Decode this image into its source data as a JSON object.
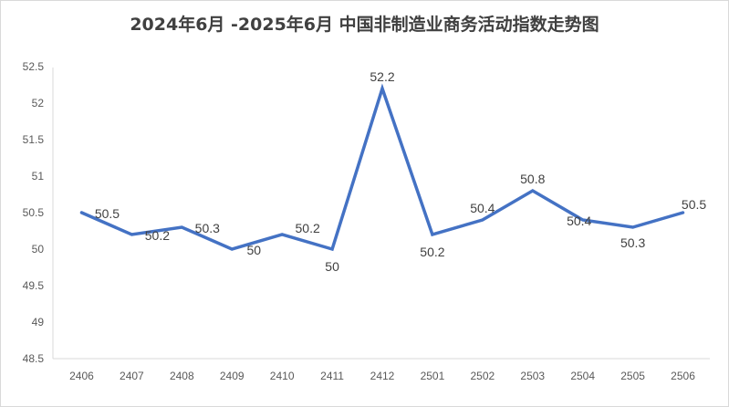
{
  "chart_data": {
    "type": "line",
    "title": "2024年6月 -2025年6月 中国非制造业商务活动指数走势图",
    "xlabel": "",
    "ylabel": "",
    "categories": [
      "2406",
      "2407",
      "2408",
      "2409",
      "2410",
      "2411",
      "2412",
      "2501",
      "2502",
      "2503",
      "2504",
      "2505",
      "2506"
    ],
    "series": [
      {
        "values": [
          50.5,
          50.2,
          50.3,
          50.0,
          50.2,
          50.0,
          52.2,
          50.2,
          50.4,
          50.8,
          50.4,
          50.3,
          50.5
        ]
      }
    ],
    "data_labels": [
      "50.5",
      "50.2",
      "50.3",
      "50",
      "50.2",
      "50",
      "52.2",
      "50.2",
      "50.4",
      "50.8",
      "50.4",
      "50.3",
      "50.5"
    ],
    "y_ticks": [
      "48.5",
      "49",
      "49.5",
      "50",
      "50.5",
      "51",
      "51.5",
      "52",
      "52.5"
    ],
    "ylim": [
      48.5,
      52.5
    ],
    "grid": false,
    "legend": "none",
    "line_color": "#4472c4"
  }
}
